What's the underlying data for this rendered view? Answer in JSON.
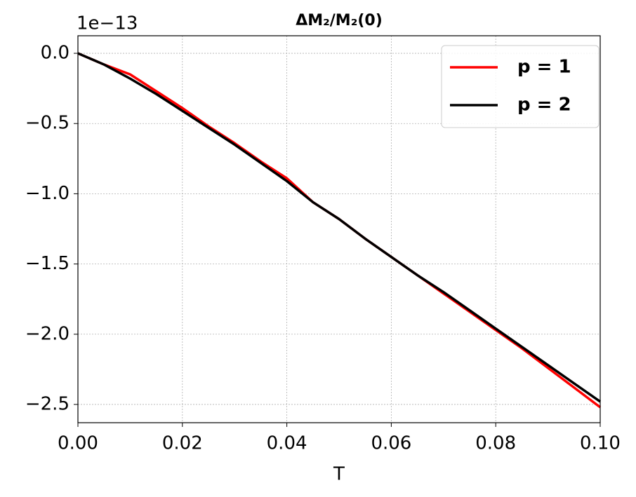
{
  "chart_data": {
    "type": "line",
    "title": "ΔM₂/M₂(0)",
    "x_label": "T",
    "y_offset_label": "1e−13",
    "x": [
      0,
      0.005,
      0.01,
      0.015,
      0.02,
      0.025,
      0.03,
      0.035,
      0.04,
      0.045,
      0.05,
      0.055,
      0.06,
      0.065,
      0.07,
      0.075,
      0.08,
      0.085,
      0.09,
      0.095,
      0.1
    ],
    "series": [
      {
        "name": "p = 1",
        "color": "#ff0000",
        "values": [
          0,
          -0.08,
          -0.15,
          -0.27,
          -0.39,
          -0.52,
          -0.64,
          -0.77,
          -0.89,
          -1.06,
          -1.18,
          -1.32,
          -1.45,
          -1.58,
          -1.71,
          -1.84,
          -1.97,
          -2.1,
          -2.24,
          -2.38,
          -2.52
        ]
      },
      {
        "name": "p = 2",
        "color": "#000000",
        "values": [
          0,
          -0.08,
          -0.18,
          -0.29,
          -0.41,
          -0.53,
          -0.65,
          -0.78,
          -0.91,
          -1.06,
          -1.18,
          -1.32,
          -1.45,
          -1.58,
          -1.7,
          -1.83,
          -1.96,
          -2.09,
          -2.22,
          -2.35,
          -2.48
        ]
      }
    ],
    "xlim": [
      0,
      0.1
    ],
    "ylim": [
      -2.63,
      0.125
    ],
    "xticks": [
      {
        "value": 0,
        "label": "0.00"
      },
      {
        "value": 0.02,
        "label": "0.02"
      },
      {
        "value": 0.04,
        "label": "0.04"
      },
      {
        "value": 0.06,
        "label": "0.06"
      },
      {
        "value": 0.08,
        "label": "0.08"
      },
      {
        "value": 0.1,
        "label": "0.10"
      }
    ],
    "yticks": [
      {
        "value": 0,
        "label": "0.0"
      },
      {
        "value": -0.5,
        "label": "−0.5"
      },
      {
        "value": -1,
        "label": "−1.0"
      },
      {
        "value": -1.5,
        "label": "−1.5"
      },
      {
        "value": -2,
        "label": "−2.0"
      },
      {
        "value": -2.5,
        "label": "−2.5"
      }
    ],
    "grid": true,
    "legend": "upper right"
  }
}
